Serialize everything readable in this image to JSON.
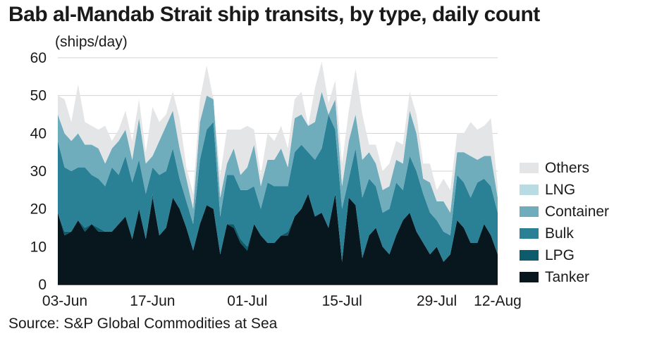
{
  "title": "Bab al-Mandab Strait ship transits, by type, daily count",
  "unit_label": "(ships/day)",
  "source": "Source: S&P Global Commodities at Sea",
  "legend": [
    {
      "name": "Others",
      "color": "#e4e5e7"
    },
    {
      "name": "LNG",
      "color": "#b9dbe3"
    },
    {
      "name": "Container",
      "color": "#6fadbd"
    },
    {
      "name": "Bulk",
      "color": "#2a8196"
    },
    {
      "name": "LPG",
      "color": "#0c5c6e"
    },
    {
      "name": "Tanker",
      "color": "#08161e"
    }
  ],
  "chart_data": {
    "type": "area",
    "stacked": true,
    "xlabel": "",
    "ylabel": "(ships/day)",
    "ylim": [
      0,
      60
    ],
    "yticks": [
      0,
      10,
      20,
      30,
      40,
      50,
      60
    ],
    "x_start": "2023-06-03",
    "xtick_labels": [
      "03-Jun",
      "17-Jun",
      "01-Jul",
      "15-Jul",
      "29-Jul",
      "12-Aug"
    ],
    "grid": true,
    "legend_position": "right",
    "series": [
      {
        "name": "Tanker",
        "color": "#08161e",
        "values": [
          19,
          13,
          14,
          17,
          14,
          16,
          14,
          14,
          14,
          16,
          18,
          12,
          20,
          12,
          23,
          13,
          15,
          23,
          20,
          15,
          9,
          16,
          21,
          20,
          8,
          16,
          15,
          11,
          9,
          16,
          13,
          11,
          11,
          13,
          13,
          18,
          20,
          24,
          18,
          19,
          15,
          24,
          6,
          23,
          21,
          7,
          13,
          15,
          10,
          8,
          13,
          17,
          19,
          14,
          11,
          8,
          10,
          6,
          8,
          17,
          15,
          11,
          11,
          16,
          13,
          8
        ]
      },
      {
        "name": "LPG",
        "color": "#0c5c6e",
        "values": [
          0,
          1,
          0,
          0,
          1,
          0,
          1,
          0,
          0,
          0,
          0,
          0,
          0,
          0,
          1,
          0,
          0,
          0,
          0,
          0,
          0,
          0,
          0,
          0,
          0,
          0,
          1,
          1,
          1,
          0,
          0,
          0,
          0,
          0,
          1,
          0,
          0,
          0,
          0,
          0,
          0,
          0,
          0,
          0,
          0,
          0,
          0,
          0,
          0,
          0,
          0,
          0,
          0,
          0,
          0,
          0,
          0,
          0,
          0,
          0,
          0,
          0,
          0,
          0,
          0,
          0
        ]
      },
      {
        "name": "Bulk",
        "color": "#2a8196",
        "values": [
          19,
          17,
          16,
          14,
          16,
          13,
          13,
          12,
          17,
          13,
          16,
          15,
          13,
          12,
          7,
          16,
          15,
          13,
          8,
          7,
          7,
          17,
          20,
          23,
          10,
          13,
          13,
          13,
          15,
          10,
          7,
          16,
          15,
          13,
          12,
          17,
          17,
          11,
          15,
          17,
          30,
          17,
          14,
          5,
          15,
          16,
          15,
          11,
          9,
          12,
          14,
          8,
          15,
          16,
          13,
          11,
          7,
          8,
          5,
          12,
          12,
          12,
          16,
          12,
          13,
          11
        ]
      },
      {
        "name": "Container",
        "color": "#6fadbd",
        "values": [
          7,
          9,
          8,
          9,
          6,
          8,
          8,
          6,
          5,
          9,
          7,
          6,
          11,
          8,
          3,
          9,
          12,
          10,
          8,
          6,
          4,
          10,
          9,
          6,
          5,
          3,
          7,
          4,
          6,
          11,
          6,
          6,
          7,
          10,
          5,
          9,
          8,
          7,
          10,
          15,
          0,
          8,
          6,
          10,
          9,
          10,
          7,
          6,
          6,
          6,
          6,
          7,
          12,
          10,
          4,
          8,
          5,
          8,
          6,
          6,
          8,
          11,
          6,
          6,
          8,
          4
        ]
      },
      {
        "name": "LNG",
        "color": "#b9dbe3",
        "values": [
          0,
          0,
          0,
          0,
          0,
          0,
          0,
          0,
          0,
          0,
          0,
          0,
          0,
          0,
          0,
          0,
          0,
          0,
          0,
          0,
          0,
          0,
          0,
          0,
          0,
          0,
          0,
          0,
          0,
          0,
          0,
          0,
          0,
          0,
          0,
          0,
          0,
          0,
          0,
          0,
          0,
          0,
          0,
          0,
          0,
          0,
          0,
          0,
          0,
          0,
          0,
          0,
          0,
          0,
          0,
          0,
          0,
          0,
          0,
          0,
          0,
          0,
          0,
          0,
          0,
          0
        ]
      },
      {
        "name": "Others",
        "color": "#e4e5e7",
        "values": [
          5,
          9,
          5,
          13,
          6,
          5,
          5,
          10,
          2,
          3,
          5,
          5,
          5,
          3,
          13,
          5,
          3,
          5,
          8,
          3,
          4,
          6,
          8,
          0,
          6,
          9,
          5,
          12,
          11,
          4,
          3,
          7,
          5,
          6,
          5,
          5,
          6,
          0,
          9,
          8,
          3,
          5,
          6,
          8,
          12,
          12,
          2,
          5,
          5,
          6,
          5,
          5,
          5,
          5,
          4,
          5,
          3,
          6,
          6,
          5,
          5,
          9,
          8,
          8,
          10,
          3
        ]
      }
    ]
  }
}
